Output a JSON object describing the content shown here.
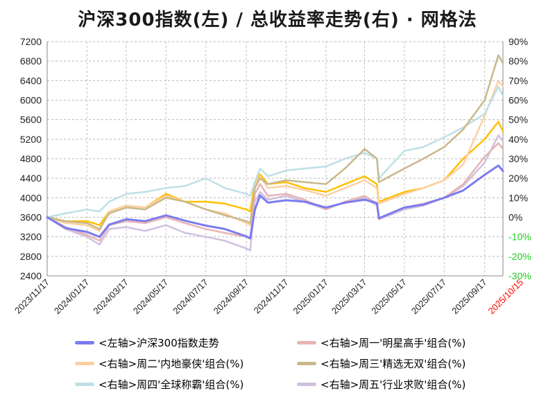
{
  "chart_data": {
    "type": "line",
    "title": "沪深300指数(左)  /  总收益率走势(右) · 网格法",
    "left_axis": {
      "min": 2400,
      "max": 7200,
      "step": 400,
      "ticks": [
        "2400",
        "2800",
        "3200",
        "3600",
        "4000",
        "4400",
        "4800",
        "5200",
        "5600",
        "6000",
        "6400",
        "6800",
        "7200"
      ]
    },
    "right_axis": {
      "min": -30,
      "max": 90,
      "step": 10,
      "unit": "%",
      "ticks": [
        "-30%",
        "-20%",
        "-10%",
        "0%",
        "10%",
        "20%",
        "30%",
        "40%",
        "50%",
        "60%",
        "70%",
        "80%",
        "90%"
      ],
      "negative_color": "#22cc22"
    },
    "x_labels": [
      "2023/11/17",
      "2024/01/17",
      "2024/03/17",
      "2024/05/17",
      "2024/07/17",
      "2024/09/17",
      "2024/11/17",
      "2025/01/17",
      "2025/03/17",
      "2025/05/17",
      "2025/07/17",
      "2025/09/17",
      "2025/10/15"
    ],
    "last_label_color": "#ff0000",
    "grid": true,
    "legend_position": "bottom",
    "series": [
      {
        "name": "<左轴>沪深300指数走势",
        "axis": "left",
        "color": "#7b7bf0",
        "width": 3,
        "x": [
          "2023/11/17",
          "2023/12/15",
          "2024/01/17",
          "2024/02/05",
          "2024/02/20",
          "2024/03/17",
          "2024/04/15",
          "2024/05/17",
          "2024/06/15",
          "2024/07/17",
          "2024/08/15",
          "2024/09/17",
          "2024/09/23",
          "2024/09/30",
          "2024/10/08",
          "2024/10/20",
          "2024/11/17",
          "2024/12/15",
          "2025/01/17",
          "2025/02/15",
          "2025/03/17",
          "2025/04/05",
          "2025/04/08",
          "2025/05/17",
          "2025/06/15",
          "2025/07/17",
          "2025/08/15",
          "2025/09/17",
          "2025/10/08",
          "2025/10/15"
        ],
        "y": [
          3600,
          3380,
          3300,
          3200,
          3450,
          3560,
          3520,
          3640,
          3530,
          3430,
          3360,
          3210,
          3170,
          3750,
          4050,
          3900,
          3950,
          3920,
          3800,
          3900,
          3960,
          3890,
          3580,
          3800,
          3860,
          4000,
          4150,
          4470,
          4660,
          4550
        ]
      },
      {
        "name": "<右轴>周一'明星高手'组合(%)",
        "axis": "right",
        "color": "#e8b4b4",
        "width": 2.5,
        "x": [
          "2023/11/17",
          "2023/12/15",
          "2024/01/17",
          "2024/02/05",
          "2024/02/20",
          "2024/03/17",
          "2024/04/15",
          "2024/05/17",
          "2024/06/15",
          "2024/07/17",
          "2024/08/15",
          "2024/09/17",
          "2024/09/23",
          "2024/09/30",
          "2024/10/08",
          "2024/10/20",
          "2024/11/17",
          "2024/12/15",
          "2025/01/17",
          "2025/02/15",
          "2025/03/17",
          "2025/04/05",
          "2025/04/08",
          "2025/05/17",
          "2025/06/15",
          "2025/07/17",
          "2025/08/15",
          "2025/09/17",
          "2025/10/08",
          "2025/10/15"
        ],
        "y": [
          0,
          -5,
          -9,
          -12,
          -4,
          -2,
          -3,
          0,
          -3,
          -6,
          -8,
          -10,
          -11,
          12,
          17,
          11,
          12,
          9,
          4,
          8,
          11,
          7,
          -1,
          5,
          7,
          10,
          17,
          31,
          38,
          35
        ]
      },
      {
        "name": "<右轴>周二'内地豪侠'组合(%)",
        "axis": "right",
        "color": "#fbd0a4",
        "width": 2.5,
        "x": [
          "2023/11/17",
          "2023/12/15",
          "2024/01/17",
          "2024/02/05",
          "2024/02/20",
          "2024/03/17",
          "2024/04/15",
          "2024/05/17",
          "2024/06/15",
          "2024/07/17",
          "2024/08/15",
          "2024/09/17",
          "2024/09/23",
          "2024/09/30",
          "2024/10/08",
          "2024/10/20",
          "2024/11/17",
          "2024/12/15",
          "2025/01/17",
          "2025/02/15",
          "2025/03/17",
          "2025/04/05",
          "2025/04/08",
          "2025/05/17",
          "2025/06/15",
          "2025/07/17",
          "2025/08/15",
          "2025/09/17",
          "2025/10/08",
          "2025/10/15"
        ],
        "y": [
          0,
          -3,
          -4,
          -7,
          3,
          6,
          5,
          11,
          8,
          4,
          2,
          -3,
          -4,
          16,
          21,
          15,
          16,
          14,
          11,
          15,
          19,
          15,
          7,
          12,
          15,
          19,
          27,
          52,
          70,
          67
        ]
      },
      {
        "name": "<右轴>周三'精选无双'组合(%)",
        "axis": "right",
        "color": "#c8b88a",
        "width": 2.5,
        "x": [
          "2023/11/17",
          "2023/12/15",
          "2024/01/17",
          "2024/02/05",
          "2024/02/20",
          "2024/03/17",
          "2024/04/15",
          "2024/05/17",
          "2024/06/15",
          "2024/07/17",
          "2024/08/15",
          "2024/09/17",
          "2024/09/23",
          "2024/09/30",
          "2024/10/08",
          "2024/10/20",
          "2024/11/17",
          "2024/12/15",
          "2025/01/17",
          "2025/02/15",
          "2025/03/17",
          "2025/04/05",
          "2025/04/08",
          "2025/05/17",
          "2025/06/15",
          "2025/07/17",
          "2025/08/15",
          "2025/09/17",
          "2025/10/08",
          "2025/10/15"
        ],
        "y": [
          0,
          -2,
          -3,
          -6,
          2,
          5,
          4,
          10,
          8,
          4,
          1,
          -2,
          -3,
          15,
          20,
          17,
          19,
          18,
          17,
          25,
          35,
          30,
          18,
          25,
          30,
          36,
          45,
          60,
          83,
          79
        ]
      },
      {
        "name": "<右轴>周四'全球称霸'组合(%)",
        "axis": "right",
        "color": "#bde0e6",
        "width": 2.5,
        "x": [
          "2023/11/17",
          "2023/12/15",
          "2024/01/17",
          "2024/02/05",
          "2024/02/20",
          "2024/03/17",
          "2024/04/15",
          "2024/05/17",
          "2024/06/15",
          "2024/07/17",
          "2024/08/15",
          "2024/09/17",
          "2024/09/23",
          "2024/09/30",
          "2024/10/08",
          "2024/10/20",
          "2024/11/17",
          "2024/12/15",
          "2025/01/17",
          "2025/02/15",
          "2025/03/17",
          "2025/04/05",
          "2025/04/08",
          "2025/05/17",
          "2025/06/15",
          "2025/07/17",
          "2025/08/15",
          "2025/09/17",
          "2025/10/08",
          "2025/10/15"
        ],
        "y": [
          0,
          2,
          4,
          3,
          8,
          12,
          13,
          15,
          16,
          20,
          15,
          12,
          11,
          18,
          25,
          21,
          24,
          25,
          26,
          30,
          33,
          30,
          20,
          34,
          36,
          41,
          46,
          53,
          67,
          62
        ]
      },
      {
        "name": "<右轴>周五'行业求败'组合(%)",
        "axis": "right",
        "color": "#cfc0de",
        "width": 2.5,
        "x": [
          "2023/11/17",
          "2023/12/15",
          "2024/01/17",
          "2024/02/05",
          "2024/02/20",
          "2024/03/17",
          "2024/04/15",
          "2024/05/17",
          "2024/06/15",
          "2024/07/17",
          "2024/08/15",
          "2024/09/17",
          "2024/09/23",
          "2024/09/30",
          "2024/10/08",
          "2024/10/20",
          "2024/11/17",
          "2024/12/15",
          "2025/01/17",
          "2025/02/15",
          "2025/03/17",
          "2025/04/05",
          "2025/04/08",
          "2025/05/17",
          "2025/06/15",
          "2025/07/17",
          "2025/08/15",
          "2025/09/17",
          "2025/10/08",
          "2025/10/15"
        ],
        "y": [
          0,
          -6,
          -10,
          -14,
          -6,
          -5,
          -7,
          -4,
          -8,
          -10,
          -12,
          -16,
          -17,
          8,
          13,
          9,
          11,
          8,
          4,
          8,
          10,
          6,
          -1,
          4,
          6,
          10,
          16,
          28,
          42,
          39
        ]
      },
      {
        "name": "",
        "axis": "right",
        "color": "#ffc000",
        "width": 2.5,
        "x": [
          "2023/11/17",
          "2023/12/15",
          "2024/01/17",
          "2024/02/05",
          "2024/02/20",
          "2024/03/17",
          "2024/04/15",
          "2024/05/17",
          "2024/06/15",
          "2024/07/17",
          "2024/08/15",
          "2024/09/17",
          "2024/09/23",
          "2024/09/30",
          "2024/10/08",
          "2024/10/20",
          "2024/11/17",
          "2024/12/15",
          "2025/01/17",
          "2025/02/15",
          "2025/03/17",
          "2025/04/05",
          "2025/04/08",
          "2025/05/17",
          "2025/06/15",
          "2025/07/17",
          "2025/08/15",
          "2025/09/17",
          "2025/10/08",
          "2025/10/15"
        ],
        "y": [
          0,
          -2,
          -2,
          -4,
          3,
          6,
          5,
          12,
          8,
          8,
          7,
          4,
          3,
          18,
          22,
          17,
          18,
          15,
          13,
          17,
          21,
          17,
          8,
          13,
          15,
          19,
          30,
          40,
          49,
          44
        ]
      }
    ]
  }
}
